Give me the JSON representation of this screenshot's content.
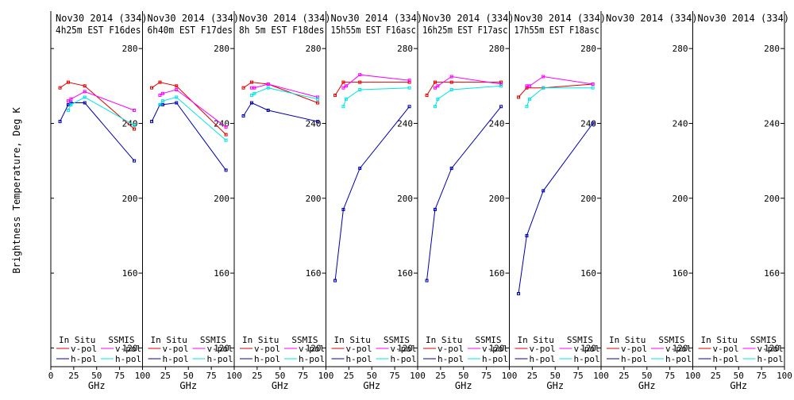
{
  "colors": {
    "insitu_v": "#dd0000",
    "insitu_h": "#0000aa",
    "ssmis_v": "#ff00ff",
    "ssmis_h": "#00e5e5",
    "frame": "#000000"
  },
  "chart_data": {
    "type": "line",
    "ylabel": "Brightness Temperature, Deg K",
    "xlabel": "GHz",
    "ylim": [
      110,
      300
    ],
    "xlim": [
      0,
      100
    ],
    "yticks": [
      120,
      160,
      200,
      240,
      280
    ],
    "xticks": [
      "0",
      "25",
      "50",
      "75",
      "100"
    ],
    "xticks_inner": [
      "25",
      "50",
      "75",
      "100"
    ],
    "legend": {
      "insitu_title": "In Situ",
      "ssmis_title": "SSMIS",
      "v_label": "v-pol",
      "h_label": "h-pol"
    },
    "panels": [
      {
        "date": "Nov30 2014 (334)",
        "time": "4h25m  EST F16des",
        "series": {
          "insitu_v": {
            "x": [
              10,
              19,
              37,
              91
            ],
            "y": [
              259,
              262,
              260,
              237
            ]
          },
          "insitu_h": {
            "x": [
              10,
              19,
              22,
              37,
              91
            ],
            "y": [
              241,
              250,
              251,
              251,
              220
            ]
          },
          "ssmis_v": {
            "x": [
              19,
              22,
              37,
              91
            ],
            "y": [
              252,
              253,
              257,
              247
            ]
          },
          "ssmis_h": {
            "x": [
              19,
              22,
              37,
              91
            ],
            "y": [
              247,
              250,
              254,
              239
            ]
          }
        }
      },
      {
        "date": "Nov30 2014 (334)",
        "time": "6h40m  EST F17des",
        "series": {
          "insitu_v": {
            "x": [
              10,
              19,
              37,
              91
            ],
            "y": [
              259,
              262,
              260,
              234
            ]
          },
          "insitu_h": {
            "x": [
              10,
              19,
              22,
              37,
              91
            ],
            "y": [
              241,
              250,
              250,
              251,
              215
            ]
          },
          "ssmis_v": {
            "x": [
              19,
              22,
              37,
              91
            ],
            "y": [
              255,
              256,
              258,
              238
            ]
          },
          "ssmis_h": {
            "x": [
              19,
              22,
              37,
              91
            ],
            "y": [
              250,
              252,
              254,
              231
            ]
          }
        }
      },
      {
        "date": "Nov30 2014 (334)",
        "time": "8h 5m  EST F18des",
        "series": {
          "insitu_v": {
            "x": [
              10,
              19,
              37,
              91
            ],
            "y": [
              259,
              262,
              261,
              251
            ]
          },
          "insitu_h": {
            "x": [
              10,
              19,
              37,
              91
            ],
            "y": [
              244,
              251,
              247,
              241
            ]
          },
          "ssmis_v": {
            "x": [
              19,
              22,
              37,
              91
            ],
            "y": [
              259,
              259,
              261,
              254
            ]
          },
          "ssmis_h": {
            "x": [
              19,
              22,
              37,
              91
            ],
            "y": [
              255,
              256,
              259,
              253
            ]
          }
        }
      },
      {
        "date": "Nov30 2014 (334)",
        "time": "15h55m  EST F16asc",
        "series": {
          "insitu_v": {
            "x": [
              10,
              19,
              37,
              91
            ],
            "y": [
              255,
              262,
              262,
              262
            ]
          },
          "insitu_h": {
            "x": [
              10,
              19,
              37,
              91
            ],
            "y": [
              156,
              194,
              216,
              249
            ]
          },
          "ssmis_v": {
            "x": [
              19,
              22,
              37,
              91
            ],
            "y": [
              259,
              260,
              266,
              263
            ]
          },
          "ssmis_h": {
            "x": [
              19,
              22,
              37,
              91
            ],
            "y": [
              249,
              253,
              258,
              259
            ]
          }
        }
      },
      {
        "date": "Nov30 2014 (334)",
        "time": "16h25m  EST F17asc",
        "series": {
          "insitu_v": {
            "x": [
              10,
              19,
              37,
              91
            ],
            "y": [
              255,
              262,
              262,
              262
            ]
          },
          "insitu_h": {
            "x": [
              10,
              19,
              37,
              91
            ],
            "y": [
              156,
              194,
              216,
              249
            ]
          },
          "ssmis_v": {
            "x": [
              19,
              22,
              37,
              91
            ],
            "y": [
              259,
              260,
              265,
              261
            ]
          },
          "ssmis_h": {
            "x": [
              19,
              22,
              37,
              91
            ],
            "y": [
              249,
              253,
              258,
              260
            ]
          }
        }
      },
      {
        "date": "Nov30 2014 (334)",
        "time": "17h55m  EST F18asc",
        "series": {
          "insitu_v": {
            "x": [
              10,
              19,
              37,
              91
            ],
            "y": [
              254,
              259,
              259,
              261
            ]
          },
          "insitu_h": {
            "x": [
              10,
              19,
              37,
              91
            ],
            "y": [
              149,
              180,
              204,
              240
            ]
          },
          "ssmis_v": {
            "x": [
              19,
              22,
              37,
              91
            ],
            "y": [
              260,
              260,
              265,
              261
            ]
          },
          "ssmis_h": {
            "x": [
              19,
              22,
              37,
              91
            ],
            "y": [
              249,
              253,
              259,
              259
            ]
          }
        }
      },
      {
        "date": "Nov30 2014 (334)",
        "time": "",
        "series": {}
      },
      {
        "date": "Nov30 2014 (334)",
        "time": "",
        "series": {}
      }
    ]
  }
}
